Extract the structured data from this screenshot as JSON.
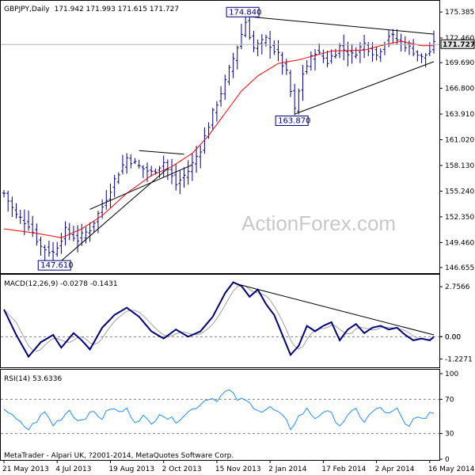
{
  "colors": {
    "background": "#ffffff",
    "price_bars": "#000080",
    "moving_average": "#ff0000",
    "trendline": "#000000",
    "macd_line": "#000080",
    "macd_signal": "#a0a0a0",
    "rsi_line": "#1e90ff",
    "watermark": "#c8c8c8",
    "annotation_text": "#000080"
  },
  "header": {
    "symbol": "GBPJPY,Daily",
    "ohlc": "171.942 171.993 171.615 171.727"
  },
  "watermark": "ActionForex.com",
  "footer": "MetaTrader - Alpari UK, ?2001-2014, MetaQuotes Software Corp.",
  "chart_data": [
    {
      "type": "ohlc",
      "name": "price",
      "x_labels": [
        "21 May 2013",
        "4 Jul 2013",
        "19 Aug 2013",
        "2 Oct 2013",
        "15 Nov 2013",
        "2 Jan 2014",
        "17 Feb 2014",
        "2 Apr 2014",
        "16 May 2014"
      ],
      "y_ticks": [
        "175.385",
        "172.460",
        "169.690",
        "166.800",
        "163.910",
        "161.020",
        "158.130",
        "155.240",
        "152.350",
        "149.460",
        "146.655"
      ],
      "ylim": [
        146.2,
        176.2
      ],
      "current_price": "171.727",
      "annotations": [
        {
          "label": "174.840",
          "x": 59
        },
        {
          "label": "163.870",
          "x": 71
        },
        {
          "label": "147.610",
          "x": 13
        }
      ],
      "close_anchors": [
        [
          0,
          155.0
        ],
        [
          3,
          152.5
        ],
        [
          6,
          151.5
        ],
        [
          9,
          149.0
        ],
        [
          12,
          148.3
        ],
        [
          15,
          150.8
        ],
        [
          18,
          149.8
        ],
        [
          21,
          151.0
        ],
        [
          24,
          153.5
        ],
        [
          27,
          156.5
        ],
        [
          30,
          159.0
        ],
        [
          33,
          158.0
        ],
        [
          36,
          157.3
        ],
        [
          39,
          158.5
        ],
        [
          42,
          156.0
        ],
        [
          45,
          157.5
        ],
        [
          48,
          160.0
        ],
        [
          51,
          164.0
        ],
        [
          54,
          167.5
        ],
        [
          57,
          171.5
        ],
        [
          59,
          174.3
        ],
        [
          61,
          171.3
        ],
        [
          64,
          172.3
        ],
        [
          67,
          170.5
        ],
        [
          69,
          168.5
        ],
        [
          71,
          164.3
        ],
        [
          73,
          168.5
        ],
        [
          76,
          171.0
        ],
        [
          79,
          169.8
        ],
        [
          82,
          171.5
        ],
        [
          85,
          170.5
        ],
        [
          88,
          171.8
        ],
        [
          91,
          170.5
        ],
        [
          94,
          172.8
        ],
        [
          97,
          172.0
        ],
        [
          100,
          171.0
        ],
        [
          102,
          170.2
        ],
        [
          104,
          171.0
        ],
        [
          105,
          171.7
        ]
      ],
      "ma_anchors": [
        [
          0,
          151.0
        ],
        [
          8,
          150.5
        ],
        [
          14,
          150.0
        ],
        [
          19,
          151.0
        ],
        [
          24,
          152.5
        ],
        [
          30,
          155.0
        ],
        [
          36,
          157.0
        ],
        [
          41,
          158.0
        ],
        [
          46,
          159.5
        ],
        [
          50,
          161.5
        ],
        [
          54,
          164.0
        ],
        [
          58,
          166.5
        ],
        [
          62,
          168.2
        ],
        [
          67,
          169.6
        ],
        [
          72,
          170.0
        ],
        [
          80,
          171.0
        ],
        [
          88,
          171.1
        ],
        [
          92,
          171.6
        ],
        [
          97,
          172.1
        ],
        [
          102,
          171.6
        ],
        [
          105,
          171.6
        ]
      ],
      "trendlines": [
        {
          "x": [
            59,
            105
          ],
          "y": [
            174.9,
            172.9
          ]
        },
        {
          "x": [
            71,
            105
          ],
          "y": [
            163.9,
            169.8
          ]
        },
        {
          "x": [
            13,
            40
          ],
          "y": [
            147.0,
            157.8
          ]
        },
        {
          "x": [
            21,
            46
          ],
          "y": [
            153.2,
            158.2
          ]
        },
        {
          "x": [
            33,
            44
          ],
          "y": [
            159.8,
            159.4
          ]
        }
      ]
    },
    {
      "type": "line",
      "name": "MACD(12,26,9)",
      "label": "MACD(12,26,9) -0.0278 -0.1431",
      "y_ticks": [
        "2.7566",
        "0.00",
        "0.00",
        "-1.2271"
      ],
      "ylim": [
        -1.6,
        3.2
      ],
      "zero_level": 0.0,
      "macd_anchors": [
        [
          0,
          1.5
        ],
        [
          3,
          0.1
        ],
        [
          6,
          -1.1
        ],
        [
          9,
          -0.3
        ],
        [
          12,
          0.1
        ],
        [
          14,
          -0.6
        ],
        [
          17,
          0.2
        ],
        [
          19,
          -0.2
        ],
        [
          21,
          -0.7
        ],
        [
          24,
          0.5
        ],
        [
          27,
          1.2
        ],
        [
          30,
          1.6
        ],
        [
          33,
          1.1
        ],
        [
          36,
          0.3
        ],
        [
          39,
          -0.1
        ],
        [
          42,
          0.4
        ],
        [
          45,
          0.0
        ],
        [
          48,
          0.3
        ],
        [
          51,
          1.1
        ],
        [
          54,
          2.4
        ],
        [
          56,
          3.0
        ],
        [
          58,
          2.8
        ],
        [
          60,
          2.2
        ],
        [
          62,
          2.6
        ],
        [
          64,
          1.8
        ],
        [
          66,
          1.2
        ],
        [
          68,
          0.1
        ],
        [
          70,
          -1.0
        ],
        [
          72,
          -0.5
        ],
        [
          74,
          0.6
        ],
        [
          76,
          0.3
        ],
        [
          78,
          0.6
        ],
        [
          80,
          0.8
        ],
        [
          82,
          -0.2
        ],
        [
          84,
          0.4
        ],
        [
          86,
          0.7
        ],
        [
          88,
          0.2
        ],
        [
          90,
          0.5
        ],
        [
          92,
          0.6
        ],
        [
          94,
          0.4
        ],
        [
          96,
          0.5
        ],
        [
          98,
          0.1
        ],
        [
          100,
          -0.2
        ],
        [
          102,
          -0.1
        ],
        [
          104,
          -0.2
        ],
        [
          105,
          0.0
        ]
      ],
      "signal_lag": 3,
      "trendlines": [
        {
          "x": [
            57,
            105
          ],
          "y": [
            2.9,
            0.1
          ]
        }
      ]
    },
    {
      "type": "line",
      "name": "RSI(14)",
      "label": "RSI(14) 53.6336",
      "y_ticks": [
        "100",
        "70",
        "30",
        "0"
      ],
      "ylim": [
        0,
        100
      ],
      "levels": [
        70,
        30
      ],
      "rsi_anchors": [
        [
          0,
          60
        ],
        [
          2,
          50
        ],
        [
          4,
          42
        ],
        [
          6,
          35
        ],
        [
          8,
          45
        ],
        [
          10,
          55
        ],
        [
          12,
          40
        ],
        [
          14,
          48
        ],
        [
          16,
          58
        ],
        [
          18,
          45
        ],
        [
          20,
          50
        ],
        [
          22,
          55
        ],
        [
          24,
          48
        ],
        [
          26,
          60
        ],
        [
          28,
          55
        ],
        [
          30,
          58
        ],
        [
          32,
          45
        ],
        [
          34,
          50
        ],
        [
          36,
          40
        ],
        [
          38,
          55
        ],
        [
          40,
          48
        ],
        [
          42,
          45
        ],
        [
          44,
          52
        ],
        [
          46,
          58
        ],
        [
          48,
          65
        ],
        [
          50,
          72
        ],
        [
          52,
          70
        ],
        [
          54,
          78
        ],
        [
          55,
          80
        ],
        [
          57,
          70
        ],
        [
          59,
          68
        ],
        [
          61,
          62
        ],
        [
          63,
          56
        ],
        [
          65,
          60
        ],
        [
          67,
          54
        ],
        [
          69,
          44
        ],
        [
          70,
          36
        ],
        [
          72,
          50
        ],
        [
          74,
          58
        ],
        [
          76,
          48
        ],
        [
          78,
          56
        ],
        [
          80,
          52
        ],
        [
          82,
          40
        ],
        [
          84,
          50
        ],
        [
          86,
          58
        ],
        [
          88,
          44
        ],
        [
          90,
          55
        ],
        [
          92,
          60
        ],
        [
          94,
          52
        ],
        [
          96,
          58
        ],
        [
          98,
          40
        ],
        [
          99,
          38
        ],
        [
          100,
          50
        ],
        [
          102,
          45
        ],
        [
          104,
          55
        ],
        [
          105,
          54
        ]
      ]
    }
  ]
}
